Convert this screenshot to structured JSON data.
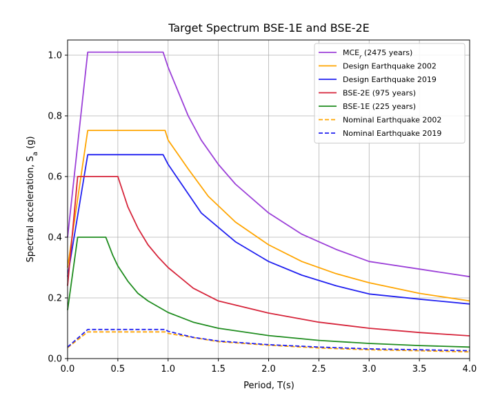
{
  "chart_data": {
    "type": "line",
    "title": "Target Spectrum BSE-1E and BSE-2E",
    "xlabel": "Period, T(s)",
    "ylabel": "Spectral acceleration, S",
    "ylabel_sub": "a",
    "ylabel_suffix": " (g)",
    "xlim": [
      0.0,
      4.0
    ],
    "ylim": [
      0.0,
      1.05
    ],
    "xticks": [
      0.0,
      0.5,
      1.0,
      1.5,
      2.0,
      2.5,
      3.0,
      3.5,
      4.0
    ],
    "xtick_labels": [
      "0.0",
      "0.5",
      "1.0",
      "1.5",
      "2.0",
      "2.5",
      "3.0",
      "3.5",
      "4.0"
    ],
    "yticks": [
      0.0,
      0.2,
      0.4,
      0.6,
      0.8,
      1.0
    ],
    "ytick_labels": [
      "0.0",
      "0.2",
      "0.4",
      "0.6",
      "0.8",
      "1.0"
    ],
    "grid": true,
    "legend_position": "top-right",
    "series": [
      {
        "name": "MCE",
        "name_sub": "r",
        "name_suffix": " (2475 years)",
        "color": "#9b3fd8",
        "dash": "solid",
        "x": [
          0.0,
          0.2,
          0.95,
          1.0,
          1.2,
          1.33,
          1.5,
          1.67,
          2.0,
          2.33,
          2.67,
          3.0,
          3.5,
          4.0
        ],
        "y": [
          0.4,
          1.01,
          1.01,
          0.96,
          0.8,
          0.72,
          0.64,
          0.575,
          0.48,
          0.41,
          0.36,
          0.32,
          0.295,
          0.27
        ]
      },
      {
        "name": "Design Earthquake 2002",
        "color": "#ffa500",
        "dash": "solid",
        "x": [
          0.0,
          0.2,
          0.97,
          1.0,
          1.2,
          1.4,
          1.67,
          2.0,
          2.33,
          2.67,
          3.0,
          3.5,
          4.0
        ],
        "y": [
          0.3,
          0.752,
          0.752,
          0.72,
          0.625,
          0.535,
          0.45,
          0.375,
          0.32,
          0.28,
          0.25,
          0.215,
          0.19
        ]
      },
      {
        "name": "Design Earthquake 2019",
        "color": "#1f1ff0",
        "dash": "solid",
        "x": [
          0.0,
          0.2,
          0.95,
          1.0,
          1.33,
          1.67,
          2.0,
          2.33,
          2.67,
          3.0,
          3.5,
          4.0
        ],
        "y": [
          0.27,
          0.672,
          0.672,
          0.64,
          0.48,
          0.385,
          0.32,
          0.275,
          0.24,
          0.213,
          0.196,
          0.18
        ]
      },
      {
        "name": "BSE-2E (975 years)",
        "color": "#d6243a",
        "dash": "solid",
        "x": [
          0.0,
          0.1,
          0.5,
          0.6,
          0.7,
          0.8,
          0.9,
          1.0,
          1.25,
          1.5,
          2.0,
          2.5,
          3.0,
          3.5,
          4.0
        ],
        "y": [
          0.24,
          0.6,
          0.6,
          0.5,
          0.43,
          0.375,
          0.335,
          0.3,
          0.232,
          0.19,
          0.15,
          0.12,
          0.1,
          0.086,
          0.075
        ]
      },
      {
        "name": "BSE-1E (225 years)",
        "color": "#1e8c1e",
        "dash": "solid",
        "x": [
          0.0,
          0.1,
          0.38,
          0.45,
          0.5,
          0.6,
          0.7,
          0.8,
          1.0,
          1.25,
          1.5,
          2.0,
          2.5,
          3.0,
          3.5,
          4.0
        ],
        "y": [
          0.16,
          0.4,
          0.4,
          0.34,
          0.305,
          0.255,
          0.215,
          0.19,
          0.152,
          0.12,
          0.1,
          0.076,
          0.06,
          0.05,
          0.043,
          0.038
        ]
      },
      {
        "name": "Nominal Earthquake 2002",
        "color": "#ffa500",
        "dash": "dashed",
        "x": [
          0.0,
          0.2,
          0.97,
          1.0,
          1.5,
          2.0,
          2.5,
          3.0,
          3.5,
          4.0
        ],
        "y": [
          0.036,
          0.088,
          0.088,
          0.083,
          0.056,
          0.044,
          0.035,
          0.029,
          0.026,
          0.022
        ]
      },
      {
        "name": "Nominal Earthquake 2019",
        "color": "#1f1ff0",
        "dash": "dashed",
        "x": [
          0.0,
          0.2,
          0.97,
          1.0,
          1.25,
          1.5,
          2.0,
          2.5,
          3.0,
          3.5,
          4.0
        ],
        "y": [
          0.038,
          0.096,
          0.096,
          0.09,
          0.07,
          0.058,
          0.046,
          0.038,
          0.032,
          0.029,
          0.026
        ]
      }
    ]
  }
}
